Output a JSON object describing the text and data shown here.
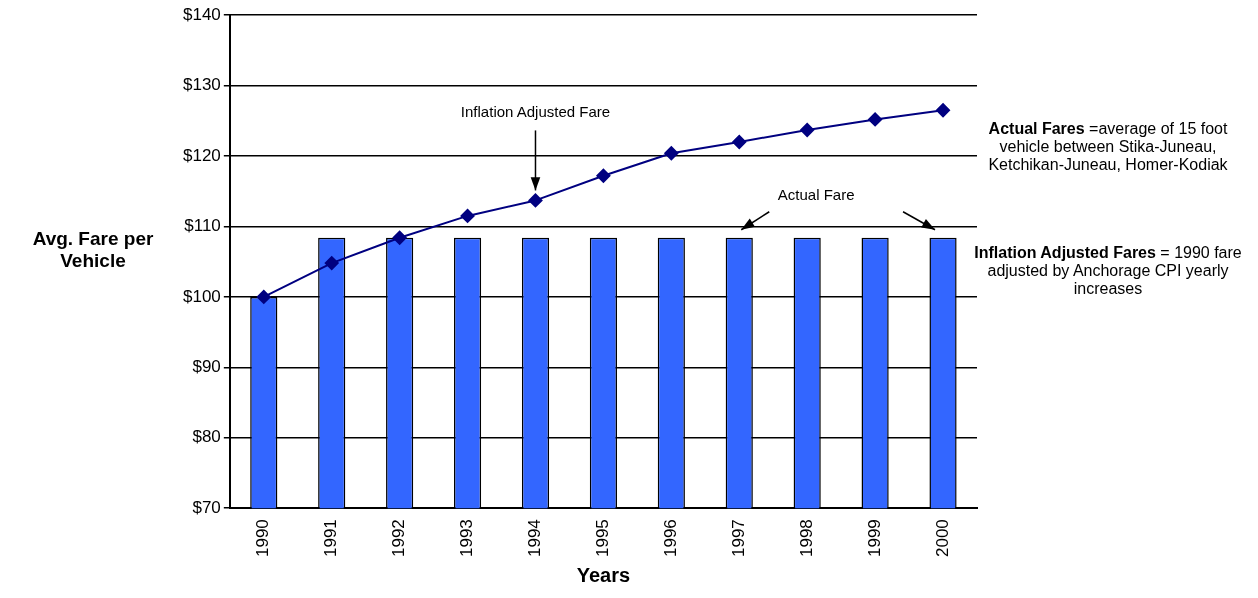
{
  "chart_data": {
    "type": "bar",
    "xlabel": "Years",
    "ylabel": "Avg. Fare per Vehicle",
    "categories": [
      "1990",
      "1991",
      "1992",
      "1993",
      "1994",
      "1995",
      "1996",
      "1997",
      "1998",
      "1999",
      "2000"
    ],
    "series": [
      {
        "name": "Actual Fare",
        "color": "#3366ff",
        "values": [
          100,
          108.4,
          108.4,
          108.4,
          108.4,
          108.4,
          108.4,
          108.4,
          108.4,
          108.4,
          108.4
        ]
      },
      {
        "name": "Inflation Adjusted Fare",
        "type": "line",
        "color": "#000080",
        "marker": "diamond",
        "values": [
          100,
          104.8,
          108.4,
          111.5,
          113.7,
          117.2,
          120.4,
          122,
          123.7,
          125.2,
          126.5
        ]
      }
    ],
    "ylim": [
      70,
      140
    ],
    "yticks": [
      {
        "value": 70,
        "label": "$70"
      },
      {
        "value": 80,
        "label": "$80"
      },
      {
        "value": 90,
        "label": "$90"
      },
      {
        "value": 100,
        "label": "$100"
      },
      {
        "value": 110,
        "label": "$110"
      },
      {
        "value": 120,
        "label": "$120"
      },
      {
        "value": 130,
        "label": "$130"
      },
      {
        "value": 140,
        "label": "$140"
      }
    ],
    "grid": "y",
    "legend": false,
    "annotations": [
      "Actual Fares =average of 15 foot vehicle between Stika-Juneau, Ketchikan-Juneau, Homer-Kodiak",
      "Inflation Adjusted Fares = 1990 fare adjusted by Anchorage CPI yearly increases"
    ]
  }
}
